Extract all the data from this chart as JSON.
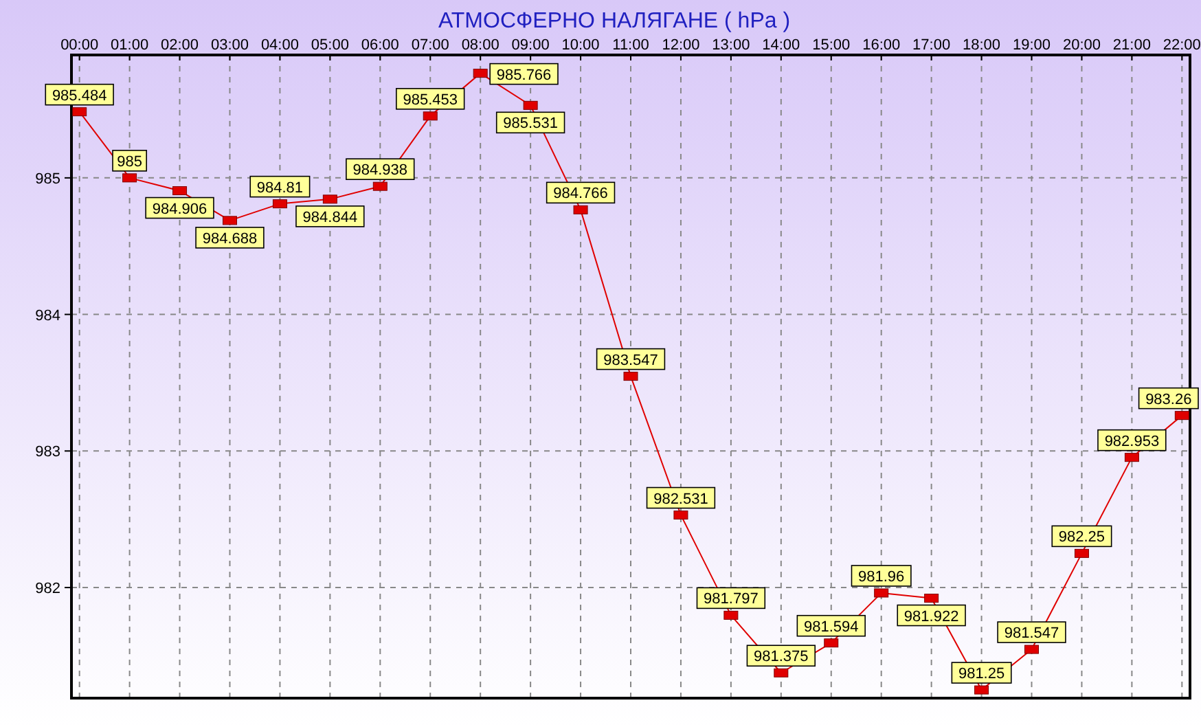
{
  "chart_data": {
    "type": "line",
    "title": "АТМОСФЕРНО НАЛЯГАНЕ  ( hPa )",
    "x": [
      0,
      1,
      2,
      3,
      4,
      5,
      6,
      7,
      8,
      9,
      10,
      11,
      12,
      13,
      14,
      15,
      16,
      17,
      18,
      19,
      20,
      21,
      22
    ],
    "series": [
      {
        "color": "#e00000",
        "values": [
          985.484,
          985,
          984.906,
          984.688,
          984.81,
          984.844,
          984.938,
          985.453,
          985.766,
          985.531,
          984.766,
          983.547,
          982.531,
          981.797,
          981.375,
          981.594,
          981.96,
          981.922,
          981.25,
          981.547,
          982.25,
          982.953,
          983.26
        ]
      }
    ],
    "xlim": [
      -0.16,
      22.16
    ],
    "ylim": [
      981.19,
      985.9
    ],
    "xticks": [
      {
        "value": 0,
        "label": "00:00"
      },
      {
        "value": 1,
        "label": "01:00"
      },
      {
        "value": 2,
        "label": "02:00"
      },
      {
        "value": 3,
        "label": "03:00"
      },
      {
        "value": 4,
        "label": "04:00"
      },
      {
        "value": 5,
        "label": "05:00"
      },
      {
        "value": 6,
        "label": "06:00"
      },
      {
        "value": 7,
        "label": "07:00"
      },
      {
        "value": 8,
        "label": "08:00"
      },
      {
        "value": 9,
        "label": "09:00"
      },
      {
        "value": 10,
        "label": "10:00"
      },
      {
        "value": 11,
        "label": "11:00"
      },
      {
        "value": 12,
        "label": "12:00"
      },
      {
        "value": 13,
        "label": "13:00"
      },
      {
        "value": 14,
        "label": "14:00"
      },
      {
        "value": 15,
        "label": "15:00"
      },
      {
        "value": 16,
        "label": "16:00"
      },
      {
        "value": 17,
        "label": "17:00"
      },
      {
        "value": 18,
        "label": "18:00"
      },
      {
        "value": 19,
        "label": "19:00"
      },
      {
        "value": 20,
        "label": "20:00"
      },
      {
        "value": 21,
        "label": "21:00"
      },
      {
        "value": 22,
        "label": "22:00"
      }
    ],
    "yticks": [
      982,
      983,
      984,
      985
    ],
    "grid": true,
    "marker": "square",
    "line_style": "solid",
    "data_labels": true
  }
}
